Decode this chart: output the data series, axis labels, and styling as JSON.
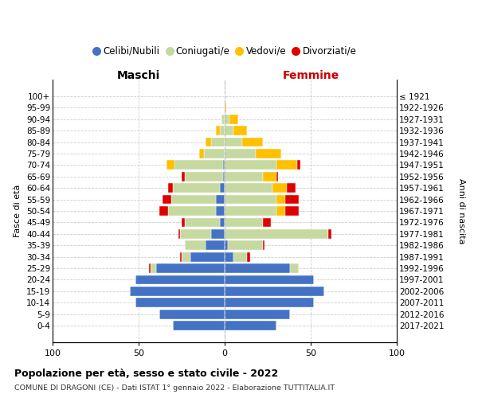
{
  "age_groups": [
    "0-4",
    "5-9",
    "10-14",
    "15-19",
    "20-24",
    "25-29",
    "30-34",
    "35-39",
    "40-44",
    "45-49",
    "50-54",
    "55-59",
    "60-64",
    "65-69",
    "70-74",
    "75-79",
    "80-84",
    "85-89",
    "90-94",
    "95-99",
    "100+"
  ],
  "birth_years": [
    "2017-2021",
    "2012-2016",
    "2007-2011",
    "2002-2006",
    "1997-2001",
    "1992-1996",
    "1987-1991",
    "1982-1986",
    "1977-1981",
    "1972-1976",
    "1967-1971",
    "1962-1966",
    "1957-1961",
    "1952-1956",
    "1947-1951",
    "1942-1946",
    "1937-1941",
    "1932-1936",
    "1927-1931",
    "1922-1926",
    "≤ 1921"
  ],
  "colors": {
    "celibi": "#4472c4",
    "coniugati": "#c5d9a0",
    "vedovi": "#ffc000",
    "divorziati": "#e00000"
  },
  "males": {
    "celibi": [
      30,
      38,
      52,
      55,
      52,
      40,
      20,
      11,
      8,
      3,
      5,
      5,
      3,
      1,
      1,
      0,
      0,
      0,
      0,
      0,
      0
    ],
    "coniugati": [
      0,
      0,
      0,
      0,
      0,
      3,
      5,
      12,
      18,
      20,
      28,
      26,
      27,
      22,
      28,
      12,
      8,
      3,
      2,
      0,
      0
    ],
    "vedovi": [
      0,
      0,
      0,
      0,
      0,
      0,
      0,
      0,
      0,
      0,
      0,
      0,
      0,
      0,
      5,
      3,
      3,
      2,
      0,
      0,
      0
    ],
    "divorziati": [
      0,
      0,
      0,
      0,
      0,
      1,
      1,
      0,
      1,
      2,
      5,
      5,
      3,
      2,
      0,
      0,
      0,
      0,
      0,
      0,
      0
    ]
  },
  "females": {
    "nubili": [
      30,
      38,
      52,
      58,
      52,
      38,
      5,
      2,
      0,
      0,
      0,
      0,
      0,
      0,
      0,
      0,
      0,
      0,
      0,
      0,
      0
    ],
    "coniugate": [
      0,
      0,
      0,
      0,
      0,
      5,
      8,
      20,
      60,
      22,
      30,
      30,
      28,
      22,
      30,
      18,
      10,
      5,
      3,
      0,
      0
    ],
    "vedove": [
      0,
      0,
      0,
      0,
      0,
      0,
      0,
      0,
      0,
      0,
      5,
      5,
      8,
      8,
      12,
      15,
      12,
      8,
      5,
      1,
      0
    ],
    "divorziate": [
      0,
      0,
      0,
      0,
      0,
      0,
      2,
      1,
      2,
      5,
      8,
      8,
      5,
      1,
      2,
      0,
      0,
      0,
      0,
      0,
      0
    ]
  },
  "title": "Popolazione per età, sesso e stato civile - 2022",
  "subtitle": "COMUNE DI DRAGONI (CE) - Dati ISTAT 1° gennaio 2022 - Elaborazione TUTTITALIA.IT",
  "xlabel_left": "Maschi",
  "xlabel_right": "Femmine",
  "ylabel": "Fasce di età",
  "ylabel_right": "Anni di nascita",
  "xlim": 100,
  "legend_labels": [
    "Celibi/Nubili",
    "Coniugati/e",
    "Vedovi/e",
    "Divorziati/e"
  ]
}
